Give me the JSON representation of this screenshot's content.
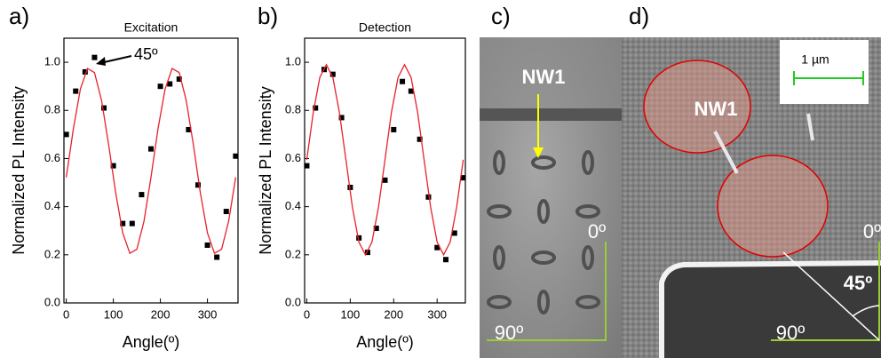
{
  "chart_data": [
    {
      "type": "scatter",
      "panel_label": "a)",
      "title": "Excitation",
      "x_label": "Angle(º)",
      "y_label": "Normalized PL Intensity",
      "annotation": "45º",
      "xlim": [
        -5,
        365
      ],
      "xticks": [
        0,
        100,
        200,
        300
      ],
      "ylim": [
        0,
        1.1
      ],
      "yticks": [
        {
          "value": 0,
          "label": "0.0"
        },
        0.2,
        0.4,
        0.6,
        0.8,
        {
          "value": 1,
          "label": "1.0"
        }
      ],
      "series": [
        {
          "mode": "markers",
          "color": "#000000",
          "x": [
            0,
            20,
            40,
            60,
            80,
            100,
            120,
            140,
            160,
            180,
            200,
            220,
            240,
            260,
            280,
            300,
            320,
            340,
            360
          ],
          "values": [
            0.7,
            0.88,
            0.96,
            1.02,
            0.81,
            0.57,
            0.33,
            0.33,
            0.45,
            0.64,
            0.9,
            0.91,
            0.93,
            0.72,
            0.49,
            0.24,
            0.19,
            0.38,
            0.61
          ]
        },
        {
          "mode": "line",
          "color": "#e8202a",
          "x": [
            0,
            15,
            30,
            45,
            60,
            75,
            90,
            105,
            120,
            135,
            150,
            165,
            180,
            195,
            210,
            225,
            240,
            255,
            270,
            285,
            300,
            315,
            330,
            345,
            360
          ],
          "values": [
            0.522,
            0.723,
            0.889,
            0.974,
            0.957,
            0.841,
            0.658,
            0.457,
            0.291,
            0.206,
            0.223,
            0.339,
            0.522,
            0.723,
            0.889,
            0.974,
            0.957,
            0.841,
            0.658,
            0.457,
            0.291,
            0.206,
            0.223,
            0.339,
            0.522
          ]
        }
      ]
    },
    {
      "type": "scatter",
      "panel_label": "b)",
      "title": "Detection",
      "x_label": "Angle(º)",
      "y_label": "Normalized PL Intensity",
      "xlim": [
        -5,
        365
      ],
      "xticks": [
        0,
        100,
        200,
        300
      ],
      "ylim": [
        0,
        1.1
      ],
      "yticks": [
        {
          "value": 0,
          "label": "0.0"
        },
        0.2,
        0.4,
        0.6,
        0.8,
        {
          "value": 1,
          "label": "1.0"
        }
      ],
      "series": [
        {
          "mode": "markers",
          "color": "#000000",
          "x": [
            0,
            20,
            40,
            60,
            80,
            100,
            120,
            140,
            160,
            180,
            200,
            220,
            240,
            260,
            280,
            300,
            320,
            340,
            360
          ],
          "values": [
            0.57,
            0.81,
            0.97,
            0.95,
            0.77,
            0.48,
            0.27,
            0.21,
            0.31,
            0.51,
            0.72,
            0.92,
            0.88,
            0.68,
            0.44,
            0.23,
            0.18,
            0.29,
            0.52
          ]
        },
        {
          "mode": "line",
          "color": "#e8202a",
          "x": [
            0,
            15,
            30,
            45,
            60,
            75,
            90,
            105,
            120,
            135,
            150,
            165,
            180,
            195,
            210,
            225,
            240,
            255,
            270,
            285,
            300,
            315,
            330,
            345,
            360
          ],
          "values": [
            0.595,
            0.793,
            0.937,
            0.99,
            0.937,
            0.793,
            0.595,
            0.398,
            0.253,
            0.2,
            0.253,
            0.398,
            0.595,
            0.793,
            0.937,
            0.99,
            0.937,
            0.793,
            0.595,
            0.398,
            0.253,
            0.2,
            0.253,
            0.398,
            0.595
          ]
        }
      ]
    }
  ],
  "images": [
    {
      "label": "c)",
      "marker": "NW1",
      "zero": "0º",
      "ninety": "90º"
    },
    {
      "label": "d)",
      "scale": "1 µm",
      "marker": "NW1",
      "zero": "0º",
      "ninety": "90º",
      "angle": "45º"
    }
  ]
}
